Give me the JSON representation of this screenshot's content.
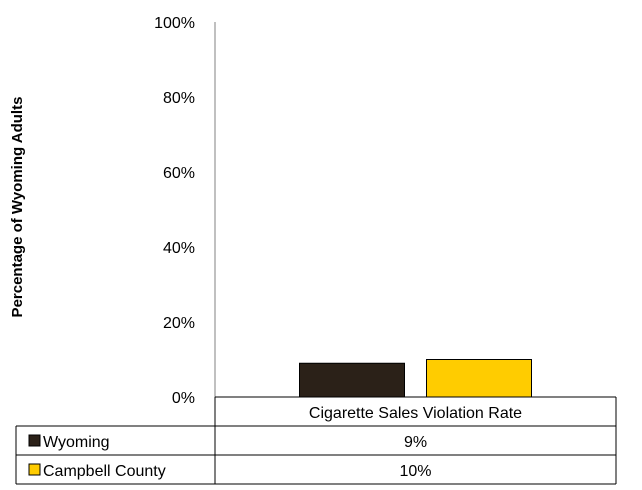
{
  "chart_data": {
    "type": "bar",
    "categories": [
      "Cigarette Sales Violation Rate"
    ],
    "series": [
      {
        "name": "Wyoming",
        "values": [
          9
        ],
        "label": "9%",
        "color": "#2b2118"
      },
      {
        "name": "Campbell County",
        "values": [
          10
        ],
        "label": "10%",
        "color": "#ffcc00"
      }
    ],
    "ylabel": "Percentage of Wyoming Adults",
    "xlabel": "",
    "ylim": [
      0,
      100
    ],
    "yticks": [
      "0%",
      "20%",
      "40%",
      "60%",
      "80%",
      "100%"
    ],
    "grid": false,
    "legend": "data-table"
  }
}
